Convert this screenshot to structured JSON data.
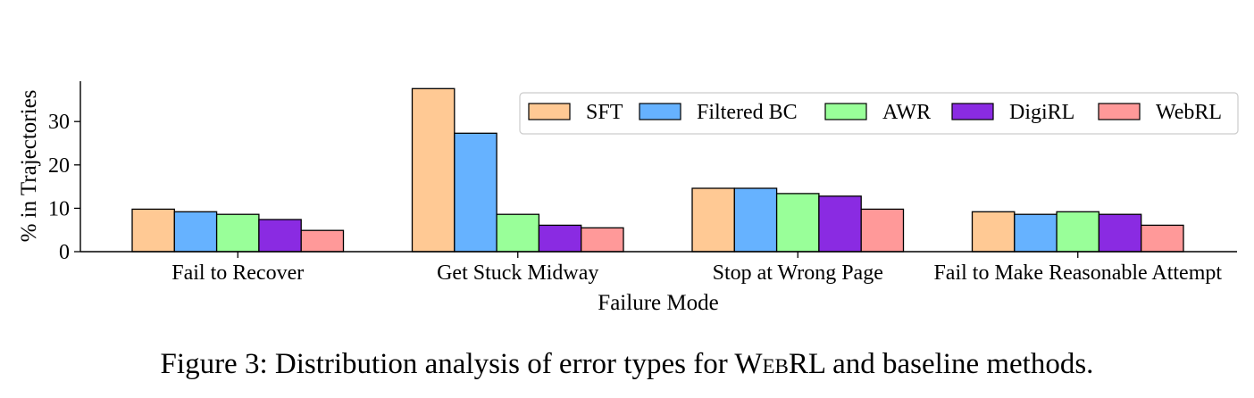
{
  "chart_data": {
    "type": "bar",
    "categories": [
      "Fail to Recover",
      "Get Stuck Midway",
      "Stop at Wrong Page",
      "Fail to Make Reasonable Attempt"
    ],
    "series": [
      {
        "name": "SFT",
        "color": "#ffc994",
        "values": [
          9.8,
          37.6,
          14.6,
          9.2
        ]
      },
      {
        "name": "Filtered BC",
        "color": "#66b2ff",
        "values": [
          9.2,
          27.3,
          14.6,
          8.6
        ]
      },
      {
        "name": "AWR",
        "color": "#99ff99",
        "values": [
          8.6,
          8.6,
          13.4,
          9.2
        ]
      },
      {
        "name": "DigiRL",
        "color": "#8a2be2",
        "values": [
          7.4,
          6.1,
          12.8,
          8.6
        ]
      },
      {
        "name": "WebRL",
        "color": "#ff9999",
        "values": [
          4.9,
          5.5,
          9.8,
          6.1
        ]
      }
    ],
    "xlabel": "Failure Mode",
    "ylabel": "% in Trajectories",
    "ylim": [
      0,
      39.3
    ],
    "yticks": [
      0,
      10,
      20,
      30
    ],
    "grid": false,
    "legend_position": "top-right"
  },
  "caption": {
    "prefix": "Figure 3: Distribution analysis of error types for ",
    "name_first": "W",
    "name_caps": "eb",
    "name_rest": "RL",
    "suffix": " and baseline methods."
  }
}
